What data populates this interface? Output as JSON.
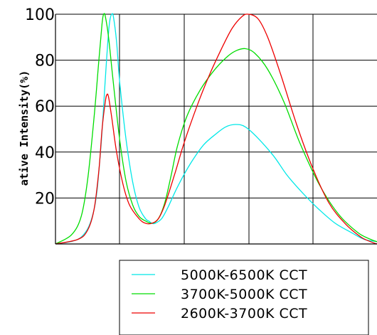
{
  "chart_data": {
    "type": "line",
    "title": "",
    "xlabel": "",
    "ylabel": "ative Intensity(%)",
    "ylim": [
      0,
      100
    ],
    "y_ticks": [
      "100",
      "80",
      "60",
      "40",
      "20"
    ],
    "grid": true,
    "legend_position": "bottom",
    "series": [
      {
        "name": "5000K-6500K CCT",
        "color": "#00e8e8",
        "points": [
          [
            0.0,
            0
          ],
          [
            0.08,
            3
          ],
          [
            0.12,
            15
          ],
          [
            0.14,
            40
          ],
          [
            0.155,
            72
          ],
          [
            0.165,
            92
          ],
          [
            0.17,
            98
          ],
          [
            0.175,
            100
          ],
          [
            0.18,
            99
          ],
          [
            0.19,
            88
          ],
          [
            0.2,
            70
          ],
          [
            0.22,
            45
          ],
          [
            0.24,
            27
          ],
          [
            0.26,
            16
          ],
          [
            0.28,
            11
          ],
          [
            0.29,
            10
          ],
          [
            0.3,
            9
          ],
          [
            0.31,
            9
          ],
          [
            0.33,
            11
          ],
          [
            0.35,
            16
          ],
          [
            0.38,
            25
          ],
          [
            0.42,
            35
          ],
          [
            0.46,
            43
          ],
          [
            0.5,
            48
          ],
          [
            0.53,
            51
          ],
          [
            0.56,
            52
          ],
          [
            0.59,
            51
          ],
          [
            0.63,
            46
          ],
          [
            0.68,
            38
          ],
          [
            0.72,
            30
          ],
          [
            0.77,
            22
          ],
          [
            0.82,
            15
          ],
          [
            0.87,
            9
          ],
          [
            0.92,
            5
          ],
          [
            0.96,
            2
          ],
          [
            1.0,
            1
          ]
        ]
      },
      {
        "name": "3700K-5000K CCT",
        "color": "#00dd00",
        "points": [
          [
            0.0,
            0
          ],
          [
            0.05,
            4
          ],
          [
            0.08,
            12
          ],
          [
            0.1,
            28
          ],
          [
            0.12,
            55
          ],
          [
            0.135,
            80
          ],
          [
            0.145,
            96
          ],
          [
            0.15,
            100
          ],
          [
            0.155,
            99
          ],
          [
            0.165,
            90
          ],
          [
            0.18,
            70
          ],
          [
            0.2,
            45
          ],
          [
            0.22,
            27
          ],
          [
            0.24,
            17
          ],
          [
            0.26,
            12
          ],
          [
            0.28,
            10
          ],
          [
            0.3,
            9
          ],
          [
            0.32,
            11
          ],
          [
            0.34,
            18
          ],
          [
            0.36,
            30
          ],
          [
            0.38,
            43
          ],
          [
            0.41,
            56
          ],
          [
            0.45,
            67
          ],
          [
            0.49,
            75
          ],
          [
            0.53,
            81
          ],
          [
            0.56,
            84
          ],
          [
            0.59,
            85
          ],
          [
            0.62,
            83
          ],
          [
            0.66,
            76
          ],
          [
            0.71,
            62
          ],
          [
            0.76,
            44
          ],
          [
            0.82,
            26
          ],
          [
            0.88,
            13
          ],
          [
            0.94,
            5
          ],
          [
            0.98,
            2
          ],
          [
            1.0,
            1
          ]
        ]
      },
      {
        "name": "2600K-3700K CCT",
        "color": "#ee0000",
        "points": [
          [
            0.0,
            0
          ],
          [
            0.07,
            2
          ],
          [
            0.1,
            6
          ],
          [
            0.12,
            15
          ],
          [
            0.135,
            32
          ],
          [
            0.145,
            50
          ],
          [
            0.155,
            62
          ],
          [
            0.16,
            65
          ],
          [
            0.165,
            64
          ],
          [
            0.175,
            55
          ],
          [
            0.19,
            40
          ],
          [
            0.21,
            26
          ],
          [
            0.23,
            17
          ],
          [
            0.26,
            11
          ],
          [
            0.28,
            9
          ],
          [
            0.3,
            9
          ],
          [
            0.32,
            11
          ],
          [
            0.34,
            17
          ],
          [
            0.37,
            30
          ],
          [
            0.4,
            44
          ],
          [
            0.44,
            60
          ],
          [
            0.48,
            74
          ],
          [
            0.52,
            86
          ],
          [
            0.55,
            94
          ],
          [
            0.58,
            99
          ],
          [
            0.6,
            100
          ],
          [
            0.63,
            98
          ],
          [
            0.66,
            90
          ],
          [
            0.7,
            74
          ],
          [
            0.75,
            52
          ],
          [
            0.8,
            33
          ],
          [
            0.85,
            18
          ],
          [
            0.9,
            9
          ],
          [
            0.95,
            3
          ],
          [
            0.98,
            1
          ],
          [
            1.0,
            0
          ]
        ]
      }
    ]
  }
}
